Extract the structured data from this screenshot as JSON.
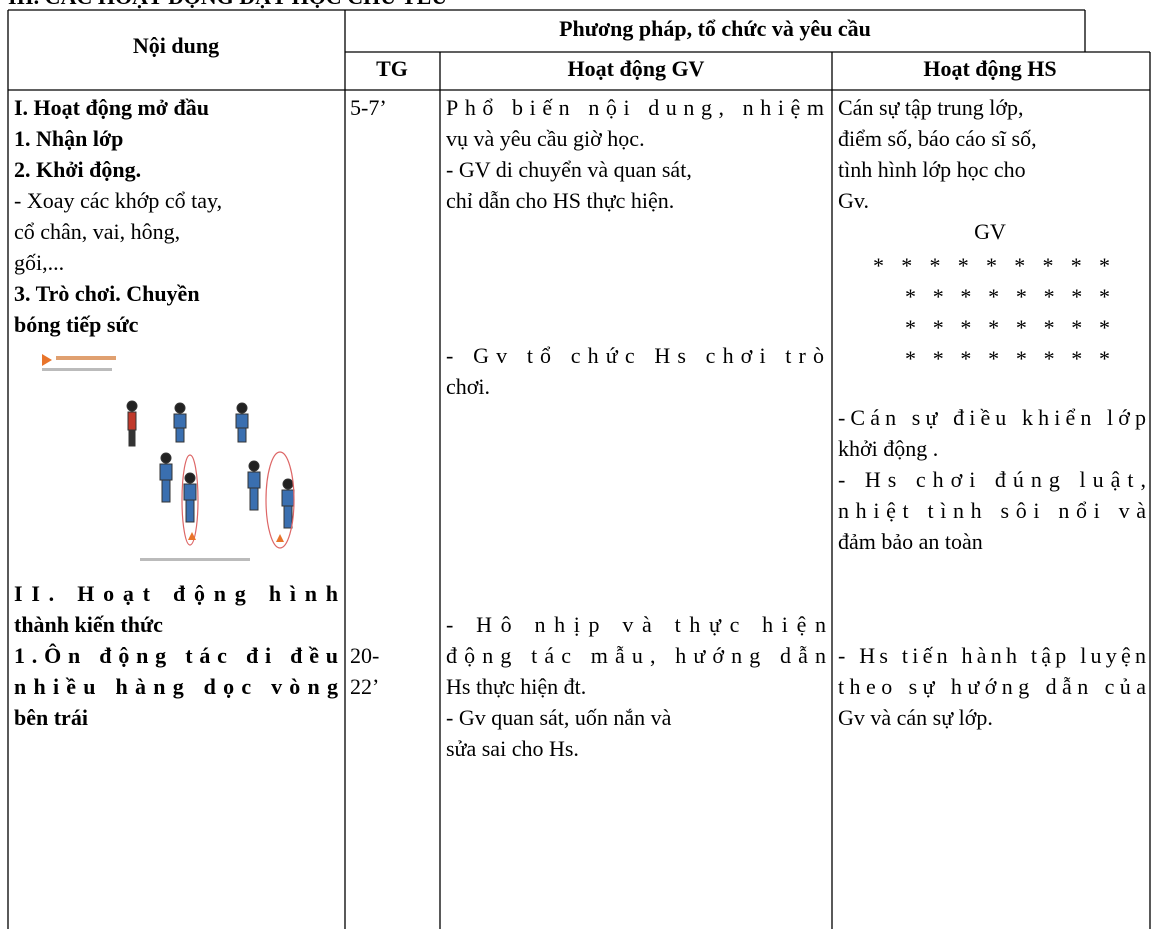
{
  "heading": "III. CÁC HOẠT ĐỘNG DẠY HỌC CHỦ YẾU",
  "table": {
    "header": {
      "content": "Nội dung",
      "methods": "Phương pháp, tổ chức và yêu cầu",
      "time": "TG",
      "teacher": "Hoạt động GV",
      "student": "Hoạt động HS"
    },
    "body": {
      "content": [
        "I. Hoạt động mở đầu",
        "1. Nhận lớp",
        "2. Khởi động.",
        "- Xoay các khớp cổ tay,",
        "cổ chân, vai, hông,",
        "gối,...",
        "3. Trò chơi. Chuyền",
        "bóng tiếp sức",
        "II. Hoạt động hình",
        "thành kiến thức",
        "1.Ôn động tác đi đều",
        "nhiều hàng dọc vòng",
        "bên trái"
      ],
      "time": [
        "5-7’",
        "20-",
        "22’"
      ],
      "teacher": [
        "Phổ biến nội dung, nhiệm",
        "vụ và yêu cầu giờ học.",
        "- GV di chuyển và quan sát,",
        "chỉ dẫn cho HS thực hiện.",
        "- Gv tổ chức Hs chơi trò",
        "chơi.",
        "- Hô nhịp và thực hiện",
        "động tác mẫu, hướng dẫn",
        "Hs thực hiện đt.",
        "- Gv quan sát, uốn nắn và",
        "sửa sai cho Hs."
      ],
      "student": [
        "Cán sự tập trung lớp,",
        "điểm số, báo cáo sĩ số,",
        "tình hình lớp học cho",
        "Gv.",
        "-Cán sự điều khiển lớp",
        "khởi động .",
        "- Hs chơi đúng luật,",
        "nhiệt tình sôi nổi và",
        "đảm bảo an toàn",
        "- Hs tiến hành tập luyện",
        "theo sự hướng dẫn của",
        "Gv và cán sự lớp."
      ],
      "formation": {
        "label": "GV",
        "rows": [
          "* * * * * * * * *",
          "* * * * * * * *",
          "* * * * * * * *",
          "* * * * * * * *"
        ]
      }
    }
  }
}
